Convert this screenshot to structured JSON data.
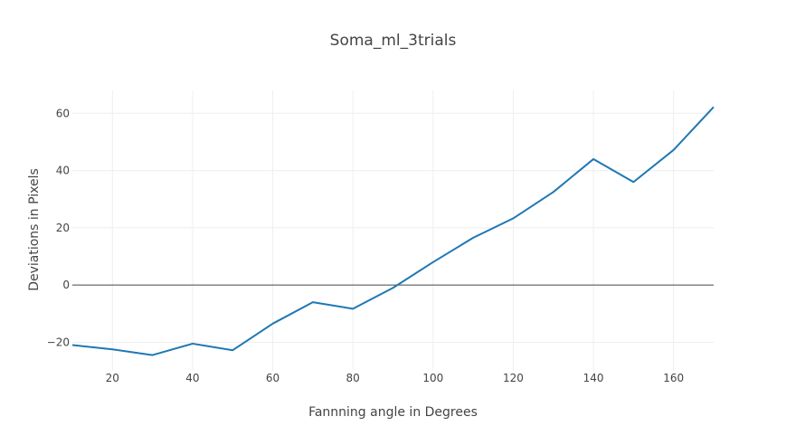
{
  "colors": {
    "series": "#1f77b4",
    "grid": "#eeeeee",
    "zeroline": "#444444",
    "text": "#444444",
    "background": "#ffffff"
  },
  "chart_data": {
    "type": "line",
    "title": "Soma_ml_3trials",
    "xlabel": "Fannning angle in Degrees",
    "ylabel": "Deviations in Pixels",
    "xlim": [
      10,
      170
    ],
    "ylim": [
      -30,
      68
    ],
    "xticks": [
      20,
      40,
      60,
      80,
      100,
      120,
      140,
      160
    ],
    "yticks": [
      -20,
      0,
      20,
      40,
      60
    ],
    "grid": true,
    "legend": "none",
    "x": [
      10,
      20,
      30,
      40,
      50,
      60,
      70,
      80,
      90,
      100,
      110,
      120,
      130,
      140,
      150,
      160,
      170
    ],
    "series": [
      {
        "values": [
          -21,
          -22.5,
          -24.5,
          -20.5,
          -22.8,
          -13.5,
          -6,
          -8.3,
          -1,
          8,
          16.5,
          23.3,
          32.5,
          44,
          36,
          47.2,
          62.2
        ]
      }
    ]
  }
}
